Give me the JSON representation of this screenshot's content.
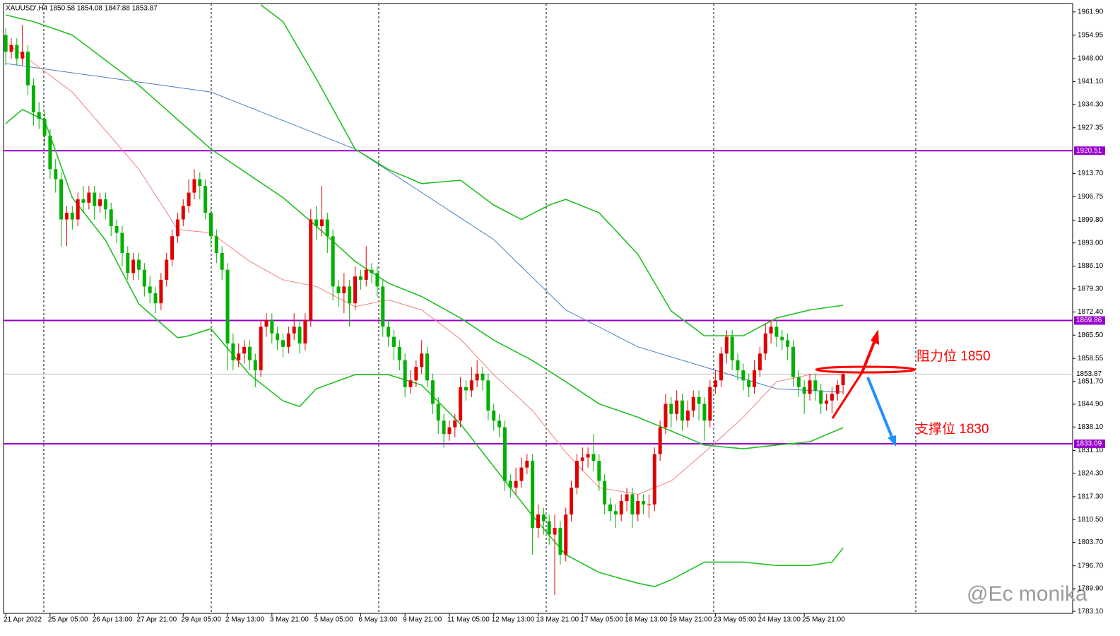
{
  "chart_data": {
    "type": "candlestick",
    "title": "XAUUSD',H4  1850.58 1854.08 1847.88 1853.87",
    "bull_color": "#e00000",
    "bear_color": "#00b000",
    "open": [
      1955,
      1950,
      1952,
      1948,
      1950,
      1940,
      1932,
      1930,
      1925,
      1915,
      1912,
      1900,
      1902,
      1900,
      1906,
      1905,
      1908,
      1904,
      1906,
      1903,
      1898,
      1896,
      1890,
      1884,
      1888,
      1885,
      1880,
      1878,
      1875,
      1882,
      1888,
      1895,
      1900,
      1904,
      1908,
      1912,
      1910,
      1902,
      1895,
      1890,
      1885,
      1863,
      1858,
      1860,
      1862,
      1858,
      1855,
      1868,
      1870,
      1866,
      1864,
      1862,
      1866,
      1868,
      1863,
      1870,
      1900,
      1898,
      1900,
      1895,
      1880,
      1878,
      1880,
      1875,
      1883,
      1882,
      1885,
      1884,
      1880,
      1868,
      1865,
      1862,
      1858,
      1850,
      1852,
      1856,
      1860,
      1852,
      1845,
      1840,
      1836,
      1838,
      1840,
      1850,
      1849,
      1852,
      1854,
      1852,
      1843,
      1840,
      1838,
      1822,
      1820,
      1822,
      1826,
      1828,
      1808,
      1812,
      1810,
      1806,
      1808,
      1800,
      1812,
      1820,
      1828,
      1829,
      1830,
      1828,
      1822,
      1815,
      1813,
      1812,
      1816,
      1818,
      1812,
      1816,
      1815,
      1815,
      1830,
      1838,
      1845,
      1842,
      1846,
      1840,
      1843,
      1847,
      1845,
      1840,
      1850,
      1852,
      1860,
      1865,
      1858,
      1855,
      1852,
      1850,
      1855,
      1860,
      1866,
      1868,
      1865,
      1864,
      1862,
      1853,
      1850,
      1848,
      1852,
      1849,
      1845,
      1846,
      1848,
      1850.58
    ],
    "high": [
      1957,
      1954,
      1954,
      1958,
      1952,
      1942,
      1935,
      1932,
      1927,
      1918,
      1914,
      1904,
      1904,
      1908,
      1910,
      1910,
      1910,
      1908,
      1908,
      1905,
      1900,
      1898,
      1892,
      1890,
      1890,
      1887,
      1883,
      1880,
      1884,
      1890,
      1897,
      1902,
      1906,
      1912,
      1915,
      1914,
      1912,
      1904,
      1897,
      1892,
      1887,
      1866,
      1863,
      1864,
      1864,
      1860,
      1870,
      1872,
      1872,
      1868,
      1866,
      1868,
      1872,
      1870,
      1872,
      1903,
      1904,
      1910,
      1902,
      1897,
      1882,
      1884,
      1882,
      1886,
      1885,
      1892,
      1887,
      1886,
      1882,
      1870,
      1867,
      1864,
      1860,
      1855,
      1858,
      1864,
      1862,
      1854,
      1847,
      1842,
      1840,
      1842,
      1853,
      1852,
      1856,
      1858,
      1856,
      1854,
      1845,
      1842,
      1840,
      1824,
      1826,
      1829,
      1830,
      1830,
      1815,
      1814,
      1812,
      1812,
      1810,
      1814,
      1822,
      1830,
      1832,
      1832,
      1836,
      1830,
      1824,
      1817,
      1815,
      1818,
      1820,
      1820,
      1818,
      1818,
      1818,
      1832,
      1840,
      1848,
      1847,
      1849,
      1848,
      1846,
      1849,
      1849,
      1847,
      1852,
      1855,
      1862,
      1867,
      1867,
      1860,
      1857,
      1854,
      1858,
      1862,
      1869,
      1870,
      1870,
      1867,
      1866,
      1864,
      1855,
      1852,
      1854,
      1854,
      1851,
      1848,
      1850,
      1852,
      1854.08
    ],
    "low": [
      1946,
      1948,
      1946,
      1946,
      1937,
      1928,
      1927,
      1922,
      1912,
      1908,
      1892,
      1892,
      1897,
      1898,
      1902,
      1903,
      1900,
      1902,
      1900,
      1895,
      1893,
      1886,
      1882,
      1882,
      1882,
      1877,
      1875,
      1872,
      1873,
      1880,
      1886,
      1893,
      1898,
      1902,
      1906,
      1906,
      1900,
      1892,
      1887,
      1882,
      1855,
      1855,
      1856,
      1857,
      1855,
      1850,
      1853,
      1865,
      1863,
      1861,
      1859,
      1860,
      1864,
      1860,
      1861,
      1868,
      1894,
      1895,
      1890,
      1876,
      1874,
      1872,
      1868,
      1873,
      1879,
      1880,
      1881,
      1877,
      1865,
      1862,
      1858,
      1855,
      1847,
      1848,
      1850,
      1854,
      1850,
      1842,
      1836,
      1832,
      1834,
      1835,
      1838,
      1846,
      1847,
      1850,
      1849,
      1840,
      1837,
      1835,
      1819,
      1817,
      1818,
      1820,
      1824,
      1800,
      1805,
      1806,
      1803,
      1788,
      1797,
      1798,
      1810,
      1818,
      1825,
      1826,
      1825,
      1819,
      1812,
      1810,
      1808,
      1810,
      1813,
      1808,
      1810,
      1812,
      1811,
      1813,
      1828,
      1836,
      1838,
      1840,
      1837,
      1838,
      1841,
      1840,
      1834,
      1838,
      1848,
      1850,
      1857,
      1855,
      1852,
      1849,
      1847,
      1848,
      1853,
      1858,
      1863,
      1862,
      1861,
      1858,
      1850,
      1847,
      1842,
      1846,
      1846,
      1842,
      1843,
      1842,
      1846,
      1847.88
    ],
    "close": [
      1950,
      1952,
      1948,
      1950,
      1940,
      1932,
      1930,
      1925,
      1915,
      1912,
      1900,
      1902,
      1900,
      1906,
      1905,
      1908,
      1904,
      1906,
      1903,
      1898,
      1896,
      1890,
      1884,
      1888,
      1885,
      1880,
      1878,
      1875,
      1882,
      1888,
      1895,
      1900,
      1904,
      1908,
      1912,
      1910,
      1902,
      1895,
      1890,
      1885,
      1863,
      1858,
      1860,
      1862,
      1858,
      1855,
      1868,
      1870,
      1866,
      1864,
      1862,
      1866,
      1868,
      1863,
      1870,
      1900,
      1898,
      1900,
      1895,
      1880,
      1878,
      1880,
      1875,
      1883,
      1882,
      1885,
      1884,
      1880,
      1868,
      1865,
      1862,
      1858,
      1850,
      1852,
      1856,
      1860,
      1852,
      1845,
      1840,
      1836,
      1838,
      1840,
      1850,
      1849,
      1852,
      1854,
      1852,
      1843,
      1840,
      1838,
      1822,
      1820,
      1822,
      1826,
      1828,
      1808,
      1812,
      1810,
      1806,
      1808,
      1800,
      1812,
      1820,
      1828,
      1829,
      1830,
      1828,
      1822,
      1815,
      1813,
      1812,
      1816,
      1818,
      1812,
      1816,
      1815,
      1815,
      1830,
      1838,
      1845,
      1842,
      1846,
      1840,
      1843,
      1847,
      1845,
      1840,
      1850,
      1852,
      1860,
      1865,
      1858,
      1855,
      1852,
      1850,
      1855,
      1860,
      1866,
      1868,
      1865,
      1864,
      1862,
      1853,
      1850,
      1848,
      1852,
      1849,
      1845,
      1846,
      1848,
      1850.58,
      1853.87
    ],
    "indicators": [
      {
        "color": "#4a7fc0",
        "x": [
          0,
          37,
          63,
          88,
          101,
          114,
          126,
          139,
          151
        ],
        "values": [
          1946.5,
          1938,
          1921,
          1894,
          1873,
          1862,
          1856,
          1849.5,
          1848.5
        ]
      },
      {
        "color": "#f08080",
        "x": [
          0,
          12,
          24,
          31,
          37,
          44,
          50,
          56,
          63,
          69,
          75,
          82,
          88,
          95,
          101,
          107,
          114,
          120,
          126,
          133,
          139,
          145,
          151
        ],
        "values": [
          1952.8,
          1938,
          1915,
          1897,
          1896,
          1887.5,
          1882,
          1880,
          1874,
          1876,
          1873,
          1864.3,
          1853.7,
          1843,
          1830.5,
          1820,
          1818,
          1822,
          1830.5,
          1841,
          1851.6,
          1853.7,
          1853.7
        ]
      },
      {
        "color": "#22c022",
        "x": [
          0,
          5,
          12,
          24,
          37,
          50,
          56,
          63,
          69,
          75,
          82,
          88,
          95,
          101,
          107,
          114,
          120,
          126,
          133,
          139,
          145,
          151
        ],
        "values": [
          1961,
          1959,
          1955,
          1940,
          1921,
          1906.5,
          1898,
          1887.5,
          1881,
          1877,
          1870.6,
          1864,
          1857.9,
          1851.6,
          1845,
          1841,
          1836.9,
          1832.7,
          1831.6,
          1832.7,
          1833.7,
          1837.9
        ]
      },
      {
        "color": "#22c022",
        "x": [
          46,
          50,
          56,
          63,
          69,
          75,
          82,
          88,
          93,
          98,
          101,
          107,
          114,
          120,
          126,
          133,
          139,
          145,
          151
        ],
        "values": [
          1964,
          1959,
          1942,
          1921,
          1914.9,
          1910.7,
          1911.7,
          1904.3,
          1900,
          1904.3,
          1906,
          1902,
          1889.6,
          1872.7,
          1865.3,
          1865.3,
          1870.6,
          1873,
          1874.4
        ]
      },
      {
        "color": "#22c022",
        "x": [
          0,
          3,
          7,
          12,
          18,
          24,
          31,
          33,
          37,
          44,
          50,
          53,
          56,
          63,
          69,
          75,
          82,
          88,
          95,
          101,
          107,
          114,
          117,
          120,
          126,
          133,
          139,
          145,
          149,
          151
        ],
        "values": [
          1928.6,
          1932.8,
          1929.6,
          1906.5,
          1893.8,
          1874.8,
          1864.7,
          1865.3,
          1867.4,
          1853.7,
          1845.9,
          1844.2,
          1849.5,
          1853.7,
          1853.7,
          1850.6,
          1839,
          1826.3,
          1811.6,
          1800,
          1794.7,
          1791.5,
          1790.5,
          1792.5,
          1797.8,
          1797.8,
          1796.8,
          1796.8,
          1797.8,
          1802
        ]
      }
    ],
    "levels": [
      {
        "value": 1920.51,
        "color": "#9900cc"
      },
      {
        "value": 1869.86,
        "color": "#9900cc"
      },
      {
        "value": 1833.09,
        "color": "#9900cc"
      }
    ],
    "current_price": {
      "value": 1853.87,
      "color": "#c0c0c0"
    },
    "xlim": [
      -0.4,
      192.4
    ],
    "xticks": [
      {
        "value": 0,
        "label": "21 Apr 2022"
      },
      {
        "value": 8,
        "label": "25 Apr 05:00"
      },
      {
        "value": 16,
        "label": "26 Apr 13:00"
      },
      {
        "value": 24,
        "label": "27 Apr 21:00"
      },
      {
        "value": 32,
        "label": "29 Apr 05:00"
      },
      {
        "value": 40,
        "label": "2 May 13:00"
      },
      {
        "value": 48,
        "label": "3 May 21:00"
      },
      {
        "value": 56,
        "label": "5 May 05:00"
      },
      {
        "value": 64,
        "label": "6 May 13:00"
      },
      {
        "value": 72,
        "label": "9 May 21:00"
      },
      {
        "value": 80,
        "label": "11 May 05:00"
      },
      {
        "value": 88,
        "label": "12 May 13:00"
      },
      {
        "value": 96,
        "label": "13 May 21:00"
      },
      {
        "value": 104,
        "label": "17 May 05:00"
      },
      {
        "value": 112,
        "label": "18 May 13:00"
      },
      {
        "value": 120,
        "label": "19 May 21:00"
      },
      {
        "value": 128,
        "label": "23 May 05:00"
      },
      {
        "value": 136,
        "label": "24 May 13:00"
      },
      {
        "value": 144,
        "label": "25 May 21:00"
      }
    ],
    "ylim": [
      1782.5,
      1964.4
    ],
    "yticks": [
      {
        "value": 1961.9,
        "label": "1961.90"
      },
      {
        "value": 1954.95,
        "label": "1954.95"
      },
      {
        "value": 1948,
        "label": "1948.00"
      },
      {
        "value": 1941.1,
        "label": "1941.10"
      },
      {
        "value": 1934.3,
        "label": "1934.30"
      },
      {
        "value": 1927.35,
        "label": "1927.35"
      },
      {
        "value": 1913.7,
        "label": "1913.70"
      },
      {
        "value": 1906.75,
        "label": "1906.75"
      },
      {
        "value": 1899.8,
        "label": "1899.80"
      },
      {
        "value": 1893,
        "label": "1893.00"
      },
      {
        "value": 1886.1,
        "label": "1886.10"
      },
      {
        "value": 1879.3,
        "label": "1879.30"
      },
      {
        "value": 1872.4,
        "label": "1872.40"
      },
      {
        "value": 1865.5,
        "label": "1865.50"
      },
      {
        "value": 1858.55,
        "label": "1858.55"
      },
      {
        "value": 1851.7,
        "label": "1851.70"
      },
      {
        "value": 1844.9,
        "label": "1844.90"
      },
      {
        "value": 1838.1,
        "label": "1838.10"
      },
      {
        "value": 1831.1,
        "label": "1831.10"
      },
      {
        "value": 1824.3,
        "label": "1824.30"
      },
      {
        "value": 1817.3,
        "label": "1817.30"
      },
      {
        "value": 1810.5,
        "label": "1810.50"
      },
      {
        "value": 1803.7,
        "label": "1803.70"
      },
      {
        "value": 1796.7,
        "label": "1796.70"
      },
      {
        "value": 1789.9,
        "label": "1789.90"
      },
      {
        "value": 1783.1,
        "label": "1783.10"
      }
    ],
    "annotations": [
      "阻力位 1850",
      "支撑位  1830"
    ],
    "watermark": "@Ec monika"
  }
}
